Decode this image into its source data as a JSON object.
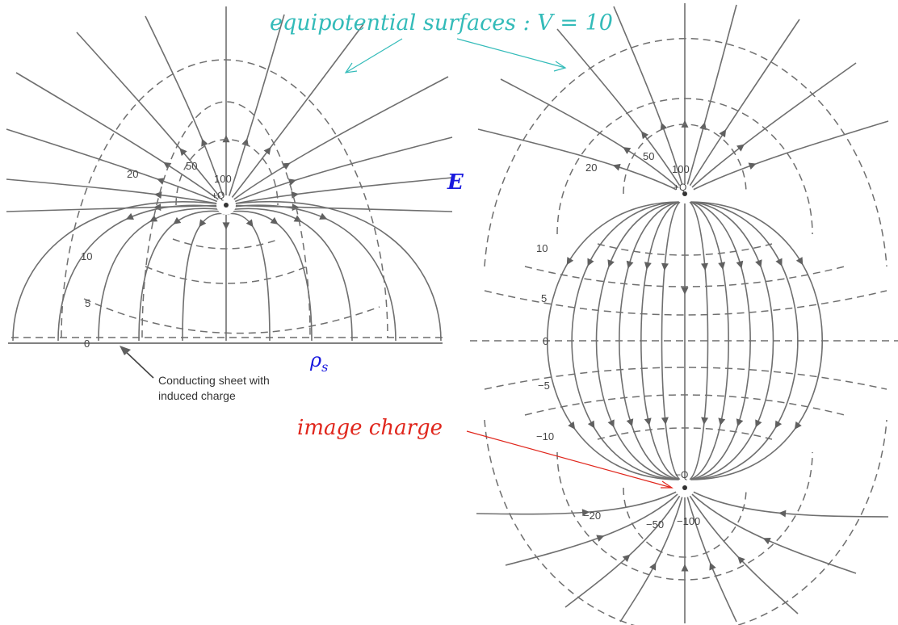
{
  "annotations": {
    "equipotential": "equipotential  surfaces : V = 10",
    "field": "E",
    "rho": "ρ",
    "rho_sub": "s",
    "image_charge": "image  charge",
    "caption_line1": "Conducting sheet with",
    "caption_line2": "induced charge"
  },
  "colors": {
    "equipotential_annotation": "#33bbb9",
    "field_annotation": "#1a1adf",
    "rho_annotation": "#1a1adf",
    "image_charge_annotation": "#e0261c",
    "diagram_ink": "#6f6f6f"
  },
  "left_figure": {
    "charge_label": "+Q",
    "labels": {
      "v100": "100",
      "v50": "50",
      "v20": "20",
      "v10": "10",
      "v5": "5",
      "v0": "0"
    }
  },
  "right_figure": {
    "charge_top_label": "+Q",
    "charge_bottom_label": "−Q",
    "labels": {
      "p100": "100",
      "p50": "50",
      "p20": "20",
      "p10": "10",
      "p5": "5",
      "p0": "0",
      "n5": "−5",
      "n10": "−10",
      "n20": "−20",
      "n50": "−50",
      "n100": "−100"
    }
  }
}
